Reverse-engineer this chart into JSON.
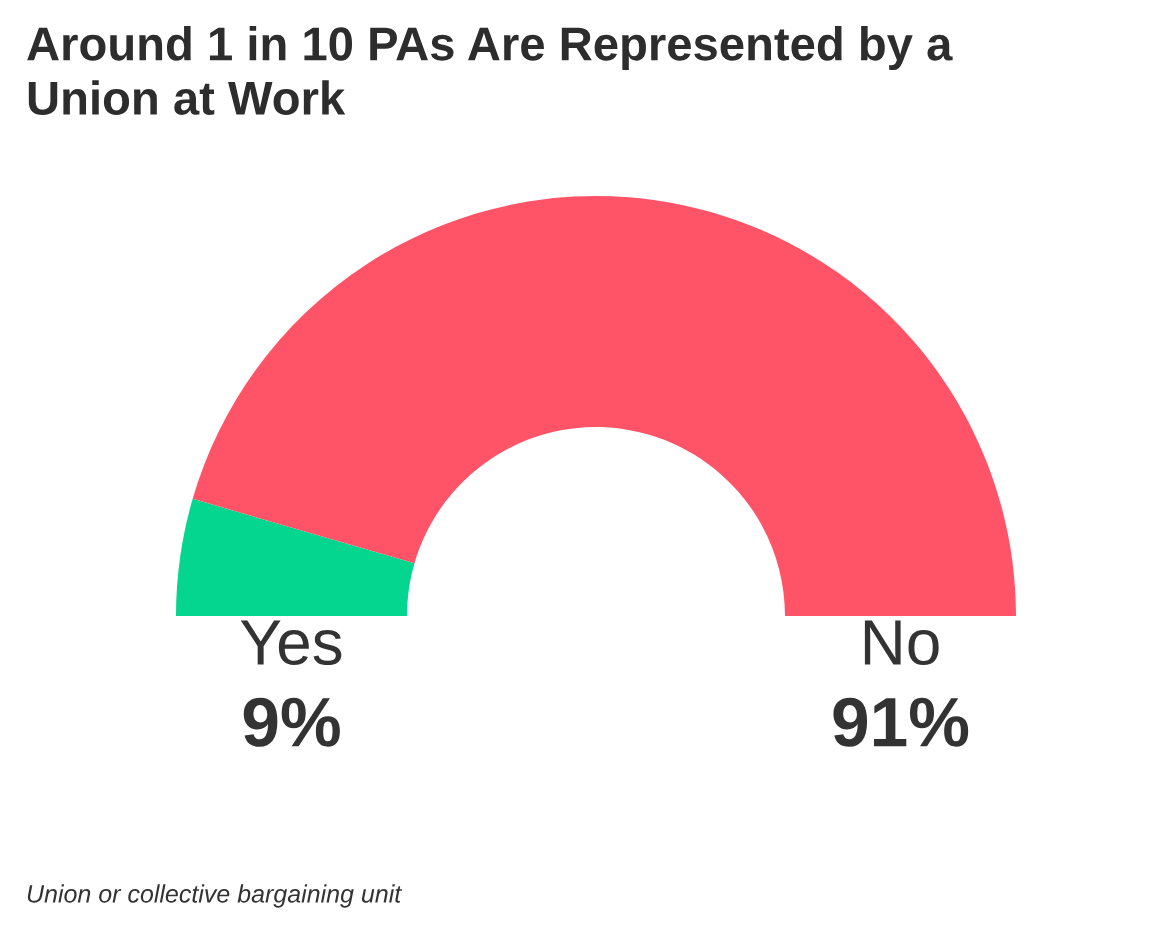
{
  "chart_data": {
    "type": "donut",
    "title": "Around 1 in 10 PAs Are Represented by a Union at Work",
    "categories": [
      "Yes",
      "No"
    ],
    "values": [
      9,
      91
    ],
    "colors": [
      "#04d690",
      "#ff5468"
    ],
    "value_labels": [
      "9%",
      "91%"
    ],
    "legend": false,
    "annotations": [
      "Union or collective bargaining unit"
    ]
  }
}
